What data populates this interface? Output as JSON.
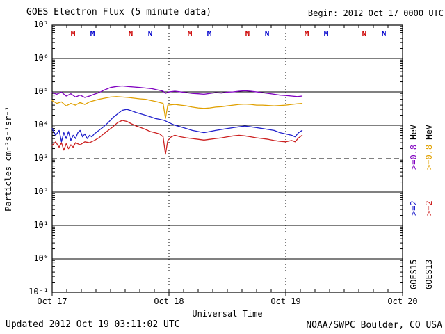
{
  "header": {
    "title": "GOES Electron Flux (5 minute data)",
    "begin": "Begin: 2012 Oct 17 0000 UTC"
  },
  "footer": {
    "updated": "Updated 2012 Oct 19 03:11:02 UTC",
    "credit": "NOAA/SWPC Boulder, CO USA"
  },
  "axes": {
    "ylabel": "Particles cm⁻²s⁻¹sr⁻¹",
    "xlabel": "Universal Time",
    "y_ticks": [
      "10⁷",
      "10⁶",
      "10⁵",
      "10⁴",
      "10³",
      "10²",
      "10¹",
      "10⁰",
      "10⁻¹"
    ],
    "x_ticks": [
      "Oct 17",
      "Oct 18",
      "Oct 19",
      "Oct 20"
    ]
  },
  "right_labels": {
    "col1": {
      "energy_high": ">=0.8",
      "unit": " MeV",
      "energy_low": ">=2",
      "sat": "GOES15"
    },
    "col2": {
      "energy_high": ">=0.8",
      "unit": " MeV",
      "energy_low": ">=2",
      "sat": "GOES13"
    }
  },
  "colors": {
    "goes15_08mev": "#8000C0",
    "goes13_08mev": "#E0A000",
    "goes15_2mev": "#2020CC",
    "goes13_2mev": "#CC2020",
    "marker_goes13": "#CC0000",
    "marker_goes15": "#0000CC",
    "axis": "#000000"
  },
  "chart_data": {
    "type": "line",
    "title": "GOES Electron Flux (5 minute data)",
    "xlabel": "Universal Time",
    "ylabel": "Particles cm-2 s-1 sr-1",
    "x_domain": [
      0,
      3
    ],
    "x_tick_labels": [
      "Oct 17",
      "Oct 18",
      "Oct 19",
      "Oct 20"
    ],
    "y_log_domain": [
      -1,
      7
    ],
    "grid": "decade-horizontal-solid, day-vertical-dotted",
    "threshold_log": 3,
    "day_gridlines": [
      1,
      2
    ],
    "legend_position": "right-rotated",
    "series": [
      {
        "id": "goes13-08mev",
        "name": "GOES13 >=0.8 MeV",
        "color": "#E0A000",
        "points": [
          [
            0.0,
            55000
          ],
          [
            0.04,
            45000
          ],
          [
            0.08,
            50000
          ],
          [
            0.12,
            38000
          ],
          [
            0.16,
            45000
          ],
          [
            0.2,
            40000
          ],
          [
            0.24,
            48000
          ],
          [
            0.28,
            42000
          ],
          [
            0.32,
            50000
          ],
          [
            0.36,
            55000
          ],
          [
            0.4,
            60000
          ],
          [
            0.45,
            65000
          ],
          [
            0.5,
            70000
          ],
          [
            0.55,
            72000
          ],
          [
            0.6,
            70000
          ],
          [
            0.65,
            68000
          ],
          [
            0.7,
            65000
          ],
          [
            0.75,
            62000
          ],
          [
            0.8,
            60000
          ],
          [
            0.85,
            55000
          ],
          [
            0.9,
            50000
          ],
          [
            0.95,
            45000
          ],
          [
            0.97,
            16000
          ],
          [
            0.99,
            40000
          ],
          [
            1.05,
            42000
          ],
          [
            1.1,
            40000
          ],
          [
            1.15,
            38000
          ],
          [
            1.2,
            35000
          ],
          [
            1.25,
            33000
          ],
          [
            1.3,
            32000
          ],
          [
            1.35,
            33000
          ],
          [
            1.4,
            35000
          ],
          [
            1.45,
            36000
          ],
          [
            1.5,
            38000
          ],
          [
            1.55,
            40000
          ],
          [
            1.6,
            42000
          ],
          [
            1.65,
            43000
          ],
          [
            1.7,
            42000
          ],
          [
            1.75,
            40000
          ],
          [
            1.8,
            40000
          ],
          [
            1.85,
            39000
          ],
          [
            1.9,
            38000
          ],
          [
            1.95,
            39000
          ],
          [
            2.0,
            40000
          ],
          [
            2.05,
            42000
          ],
          [
            2.1,
            44000
          ],
          [
            2.14,
            45000
          ]
        ]
      },
      {
        "id": "goes15-08mev",
        "name": "GOES15 >=0.8 MeV",
        "color": "#8000C0",
        "points": [
          [
            0.0,
            95000
          ],
          [
            0.04,
            85000
          ],
          [
            0.08,
            98000
          ],
          [
            0.12,
            75000
          ],
          [
            0.16,
            88000
          ],
          [
            0.2,
            70000
          ],
          [
            0.24,
            80000
          ],
          [
            0.28,
            68000
          ],
          [
            0.32,
            75000
          ],
          [
            0.36,
            85000
          ],
          [
            0.4,
            95000
          ],
          [
            0.45,
            115000
          ],
          [
            0.5,
            135000
          ],
          [
            0.55,
            145000
          ],
          [
            0.6,
            150000
          ],
          [
            0.65,
            145000
          ],
          [
            0.7,
            140000
          ],
          [
            0.75,
            135000
          ],
          [
            0.8,
            130000
          ],
          [
            0.85,
            125000
          ],
          [
            0.9,
            115000
          ],
          [
            0.95,
            105000
          ],
          [
            0.97,
            90000
          ],
          [
            1.0,
            100000
          ],
          [
            1.05,
            105000
          ],
          [
            1.1,
            100000
          ],
          [
            1.15,
            95000
          ],
          [
            1.2,
            90000
          ],
          [
            1.25,
            88000
          ],
          [
            1.3,
            85000
          ],
          [
            1.35,
            90000
          ],
          [
            1.4,
            95000
          ],
          [
            1.45,
            92000
          ],
          [
            1.5,
            98000
          ],
          [
            1.55,
            100000
          ],
          [
            1.6,
            105000
          ],
          [
            1.65,
            108000
          ],
          [
            1.7,
            105000
          ],
          [
            1.75,
            100000
          ],
          [
            1.8,
            95000
          ],
          [
            1.85,
            90000
          ],
          [
            1.9,
            85000
          ],
          [
            1.95,
            80000
          ],
          [
            2.0,
            78000
          ],
          [
            2.05,
            75000
          ],
          [
            2.1,
            72000
          ],
          [
            2.14,
            75000
          ]
        ]
      },
      {
        "id": "goes13-2mev",
        "name": "GOES13 >=2 MeV",
        "color": "#CC2020",
        "points": [
          [
            0.0,
            2500
          ],
          [
            0.03,
            3200
          ],
          [
            0.06,
            2200
          ],
          [
            0.08,
            3000
          ],
          [
            0.1,
            1800
          ],
          [
            0.12,
            2800
          ],
          [
            0.14,
            2000
          ],
          [
            0.16,
            2600
          ],
          [
            0.18,
            2200
          ],
          [
            0.2,
            3000
          ],
          [
            0.24,
            2600
          ],
          [
            0.28,
            3200
          ],
          [
            0.32,
            3000
          ],
          [
            0.36,
            3500
          ],
          [
            0.4,
            4200
          ],
          [
            0.44,
            5500
          ],
          [
            0.48,
            7000
          ],
          [
            0.52,
            9000
          ],
          [
            0.56,
            12000
          ],
          [
            0.6,
            14000
          ],
          [
            0.64,
            13000
          ],
          [
            0.68,
            11000
          ],
          [
            0.72,
            9500
          ],
          [
            0.76,
            8500
          ],
          [
            0.8,
            7500
          ],
          [
            0.84,
            6500
          ],
          [
            0.88,
            6000
          ],
          [
            0.92,
            5500
          ],
          [
            0.95,
            4500
          ],
          [
            0.97,
            1350
          ],
          [
            0.99,
            3500
          ],
          [
            1.02,
            4500
          ],
          [
            1.05,
            5000
          ],
          [
            1.1,
            4500
          ],
          [
            1.15,
            4200
          ],
          [
            1.2,
            4000
          ],
          [
            1.25,
            3800
          ],
          [
            1.3,
            3600
          ],
          [
            1.35,
            3800
          ],
          [
            1.4,
            4000
          ],
          [
            1.45,
            4200
          ],
          [
            1.5,
            4500
          ],
          [
            1.55,
            4800
          ],
          [
            1.6,
            5000
          ],
          [
            1.65,
            4800
          ],
          [
            1.7,
            4500
          ],
          [
            1.75,
            4200
          ],
          [
            1.8,
            4000
          ],
          [
            1.85,
            3800
          ],
          [
            1.9,
            3500
          ],
          [
            1.95,
            3300
          ],
          [
            2.0,
            3200
          ],
          [
            2.05,
            3500
          ],
          [
            2.08,
            3200
          ],
          [
            2.11,
            4200
          ],
          [
            2.14,
            5000
          ]
        ]
      },
      {
        "id": "goes15-2mev",
        "name": "GOES15 >=2 MeV",
        "color": "#2020CC",
        "points": [
          [
            0.0,
            8000
          ],
          [
            0.03,
            5000
          ],
          [
            0.06,
            7000
          ],
          [
            0.08,
            3200
          ],
          [
            0.1,
            6000
          ],
          [
            0.12,
            4000
          ],
          [
            0.14,
            6500
          ],
          [
            0.16,
            3500
          ],
          [
            0.18,
            5000
          ],
          [
            0.2,
            4000
          ],
          [
            0.22,
            6000
          ],
          [
            0.24,
            7000
          ],
          [
            0.26,
            4500
          ],
          [
            0.28,
            5500
          ],
          [
            0.3,
            4000
          ],
          [
            0.32,
            5000
          ],
          [
            0.34,
            4500
          ],
          [
            0.36,
            5500
          ],
          [
            0.4,
            7000
          ],
          [
            0.44,
            9000
          ],
          [
            0.48,
            12000
          ],
          [
            0.52,
            17000
          ],
          [
            0.56,
            22000
          ],
          [
            0.6,
            28000
          ],
          [
            0.64,
            30000
          ],
          [
            0.68,
            27000
          ],
          [
            0.72,
            24000
          ],
          [
            0.76,
            22000
          ],
          [
            0.8,
            20000
          ],
          [
            0.84,
            18000
          ],
          [
            0.88,
            16000
          ],
          [
            0.92,
            15000
          ],
          [
            0.96,
            14000
          ],
          [
            1.0,
            12000
          ],
          [
            1.05,
            10000
          ],
          [
            1.1,
            9000
          ],
          [
            1.15,
            8000
          ],
          [
            1.2,
            7000
          ],
          [
            1.25,
            6500
          ],
          [
            1.3,
            6000
          ],
          [
            1.35,
            6500
          ],
          [
            1.4,
            7000
          ],
          [
            1.45,
            7500
          ],
          [
            1.5,
            8000
          ],
          [
            1.55,
            8500
          ],
          [
            1.6,
            9000
          ],
          [
            1.65,
            9500
          ],
          [
            1.7,
            9000
          ],
          [
            1.75,
            8500
          ],
          [
            1.8,
            8000
          ],
          [
            1.85,
            7500
          ],
          [
            1.9,
            7000
          ],
          [
            1.95,
            6000
          ],
          [
            2.0,
            5500
          ],
          [
            2.05,
            5000
          ],
          [
            2.08,
            4500
          ],
          [
            2.11,
            6000
          ],
          [
            2.14,
            7000
          ]
        ]
      }
    ],
    "markers": [
      {
        "t": 0.179,
        "label": "M",
        "sat": "GOES13",
        "color": "#CC0000"
      },
      {
        "t": 0.345,
        "label": "M",
        "sat": "GOES15",
        "color": "#0000CC"
      },
      {
        "t": 0.672,
        "label": "N",
        "sat": "GOES13",
        "color": "#CC0000"
      },
      {
        "t": 0.839,
        "label": "N",
        "sat": "GOES15",
        "color": "#0000CC"
      },
      {
        "t": 1.179,
        "label": "M",
        "sat": "GOES13",
        "color": "#CC0000"
      },
      {
        "t": 1.345,
        "label": "M",
        "sat": "GOES15",
        "color": "#0000CC"
      },
      {
        "t": 1.672,
        "label": "N",
        "sat": "GOES13",
        "color": "#CC0000"
      },
      {
        "t": 1.839,
        "label": "N",
        "sat": "GOES15",
        "color": "#0000CC"
      },
      {
        "t": 2.179,
        "label": "M",
        "sat": "GOES13",
        "color": "#CC0000"
      },
      {
        "t": 2.345,
        "label": "M",
        "sat": "GOES15",
        "color": "#0000CC"
      },
      {
        "t": 2.672,
        "label": "N",
        "sat": "GOES13",
        "color": "#CC0000"
      },
      {
        "t": 2.839,
        "label": "N",
        "sat": "GOES15",
        "color": "#0000CC"
      }
    ]
  }
}
